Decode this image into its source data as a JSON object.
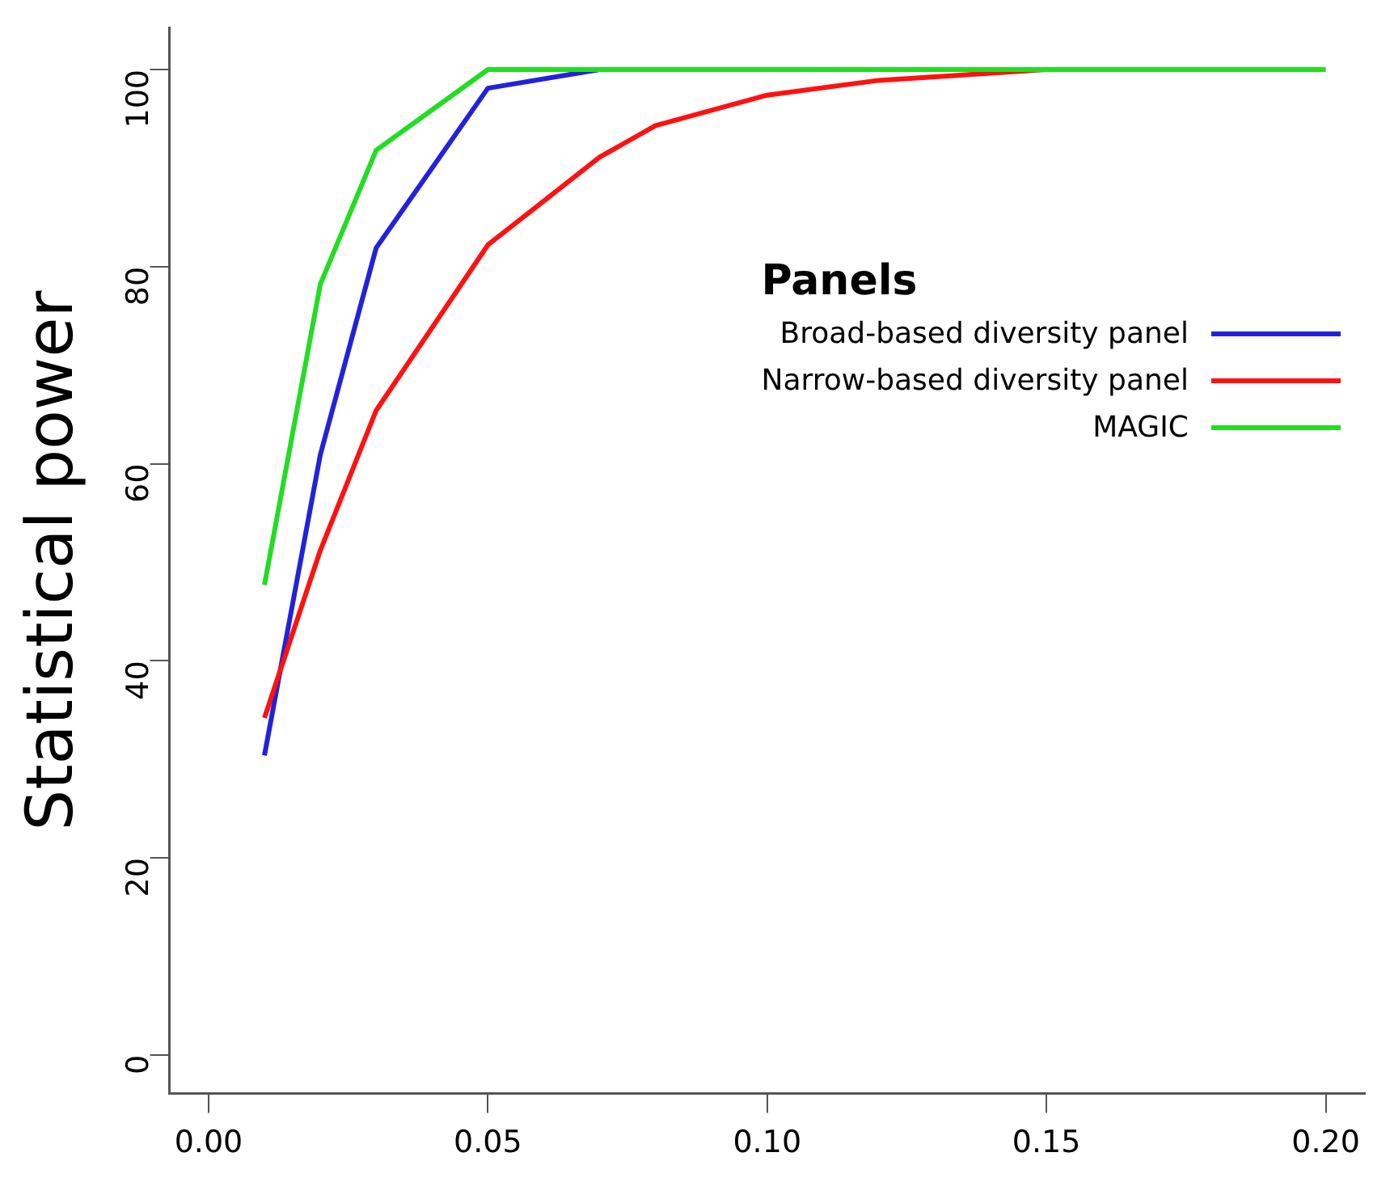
{
  "chart_data": {
    "type": "line",
    "ylabel": "Statistical power",
    "legend_title": "Panels",
    "legend": "right",
    "grid": false,
    "marker": "none",
    "line_style": "solid",
    "xlim": [
      -0.007,
      0.207
    ],
    "ylim": [
      -3.9,
      104.2
    ],
    "xticks": [
      {
        "value": 0,
        "label": "0.00"
      },
      {
        "value": 0.05,
        "label": "0.05"
      },
      {
        "value": 0.1,
        "label": "0.10"
      },
      {
        "value": 0.15,
        "label": "0.15"
      },
      {
        "value": 0.2,
        "label": "0.20"
      }
    ],
    "yticks": [
      0,
      20,
      40,
      60,
      80,
      100
    ],
    "series": [
      {
        "name": "Broad-based diversity panel",
        "color": "#2222dd",
        "x": [
          0.01,
          0.02,
          0.03,
          0.05,
          0.07
        ],
        "values": [
          30.4,
          60.9,
          81.9,
          98.1,
          100
        ]
      },
      {
        "name": "Narrow-based diversity panel",
        "color": "#ff1111",
        "x": [
          0.01,
          0.02,
          0.03,
          0.05,
          0.07,
          0.08,
          0.1,
          0.12,
          0.15
        ],
        "values": [
          34.2,
          51.2,
          65.4,
          82.2,
          91.1,
          94.3,
          97.4,
          98.9,
          100
        ]
      },
      {
        "name": "MAGIC",
        "color": "#22dd22",
        "x": [
          0.01,
          0.02,
          0.03,
          0.05,
          0.07,
          0.08,
          0.1,
          0.12,
          0.15,
          0.2
        ],
        "values": [
          47.7,
          78.2,
          91.8,
          100,
          100,
          100,
          100,
          100,
          100,
          100
        ]
      }
    ]
  }
}
